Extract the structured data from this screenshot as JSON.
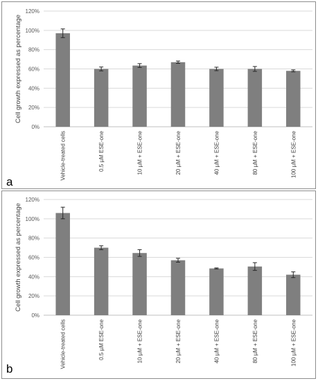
{
  "chart_data": [
    {
      "panel_label": "a",
      "type": "bar",
      "categories": [
        "Vehicle-treated cells",
        "0.5 µM ESE-one",
        "10 µM + ESE-one",
        "20 µM + ESE-one",
        "40 µM + ESE-one",
        "80 µM + ESE-one",
        "100 µM + ESE-one"
      ],
      "values": [
        97,
        60,
        63.5,
        67,
        60,
        60,
        58
      ],
      "errors": [
        4.5,
        2,
        2,
        1.2,
        1.8,
        2.5,
        1
      ],
      "ylabel": "Cell growth expressed  as percentage",
      "ylim": [
        0,
        120
      ],
      "yticks": [
        0,
        20,
        40,
        60,
        80,
        100,
        120
      ],
      "ytick_labels": [
        "0%",
        "20%",
        "40%",
        "60%",
        "80%",
        "100%",
        "120%"
      ],
      "grid": true,
      "bar_color": "#7f7f7f"
    },
    {
      "panel_label": "b",
      "type": "bar",
      "categories": [
        "Vehicle-treated cells",
        "0.5 µM ESE-one",
        "10 µM + ESE-one",
        "20 µM + ESE-one",
        "40 µM + ESE-one",
        "80 µM + ESE-one",
        "100 µM + ESE-one"
      ],
      "values": [
        106,
        70,
        64.5,
        57,
        48.5,
        50.5,
        42
      ],
      "errors": [
        6,
        2,
        3.5,
        2,
        0.5,
        4,
        3
      ],
      "ylabel": "Cell growth expressed  as percentage",
      "ylim": [
        0,
        120
      ],
      "yticks": [
        0,
        20,
        40,
        60,
        80,
        100,
        120
      ],
      "ytick_labels": [
        "0%",
        "20%",
        "40%",
        "60%",
        "80%",
        "100%",
        "120%"
      ],
      "grid": true,
      "bar_color": "#7f7f7f"
    }
  ]
}
